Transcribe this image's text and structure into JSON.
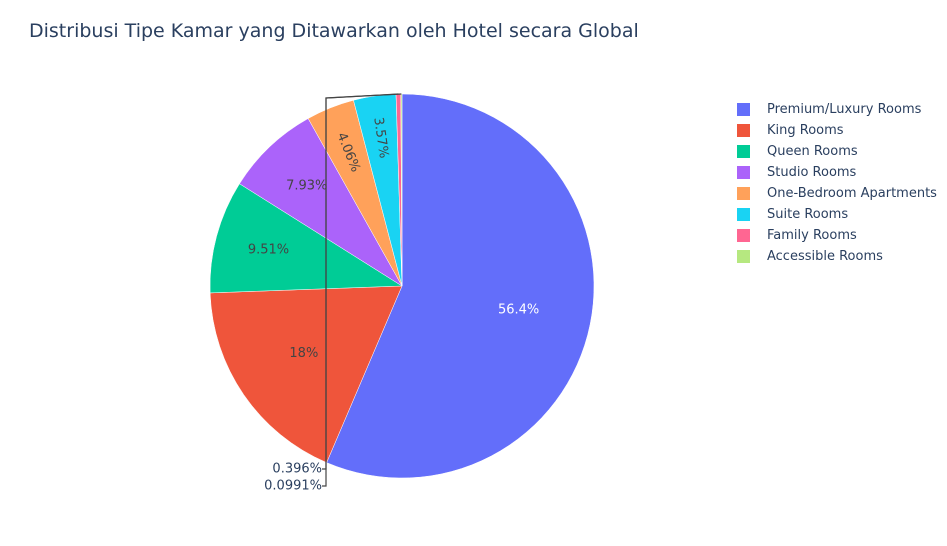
{
  "chart_data": {
    "type": "pie",
    "title": "Distribusi Tipe Kamar yang Ditawarkan oleh Hotel secara Global",
    "categories": [
      "Premium/Luxury Rooms",
      "King Rooms",
      "Queen Rooms",
      "Studio Rooms",
      "One-Bedroom Apartments",
      "Suite Rooms",
      "Family Rooms",
      "Accessible Rooms"
    ],
    "values": [
      56.4,
      18,
      9.51,
      7.93,
      4.06,
      3.57,
      0.396,
      0.0991
    ],
    "labels": [
      "56.4%",
      "18%",
      "9.51%",
      "7.93%",
      "4.06%",
      "3.57%",
      "0.396%",
      "0.0991%"
    ],
    "colors": [
      "#636efa",
      "#ef553b",
      "#00cc96",
      "#ab63fa",
      "#ffa15a",
      "#19d3f3",
      "#ff6692",
      "#b6e880"
    ],
    "legend_position": "right"
  }
}
